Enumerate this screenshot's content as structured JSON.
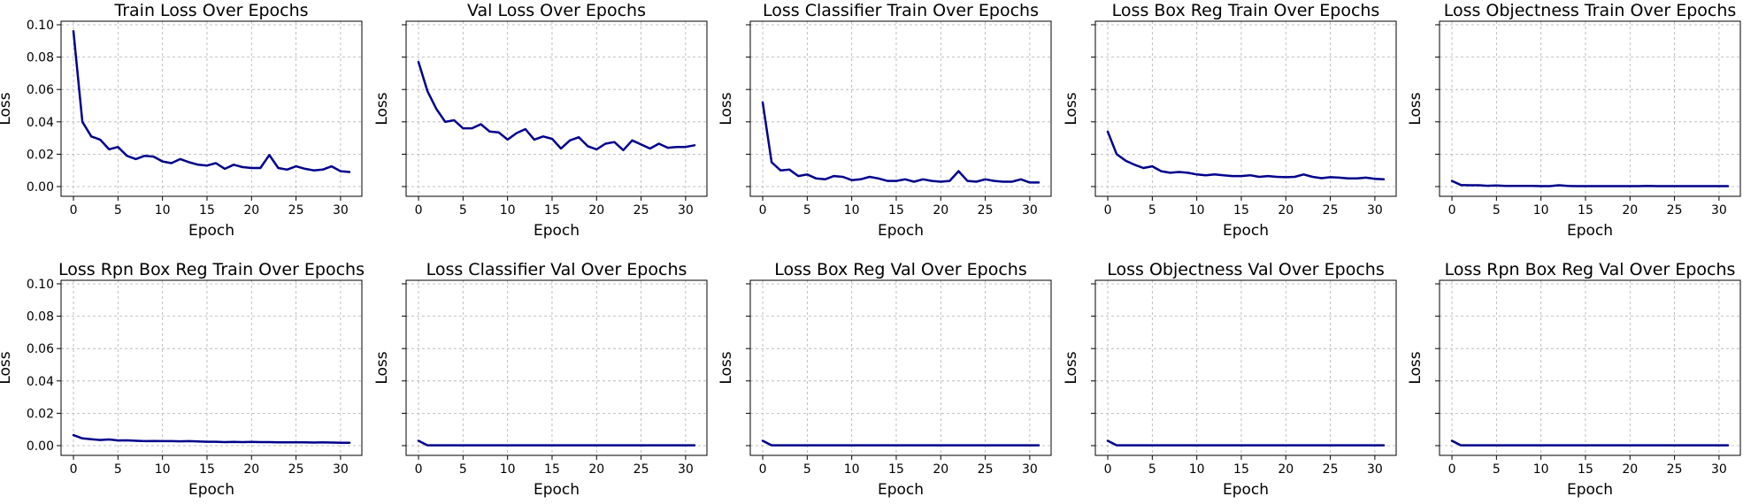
{
  "chart_data": [
    {
      "type": "line",
      "title": "Train Loss Over Epochs",
      "xlabel": "Epoch",
      "ylabel": "Loss",
      "ylim": [
        0,
        0.1
      ],
      "xlim": [
        0,
        31
      ],
      "xticks": [
        "0",
        "5",
        "10",
        "15",
        "20",
        "25",
        "30"
      ],
      "yticks": [
        "0.00",
        "0.02",
        "0.04",
        "0.06",
        "0.08",
        "0.10"
      ],
      "grid": true,
      "color": "#00008b",
      "x": [
        0,
        1,
        2,
        3,
        4,
        5,
        6,
        7,
        8,
        9,
        10,
        11,
        12,
        13,
        14,
        15,
        16,
        17,
        18,
        19,
        20,
        21,
        22,
        23,
        24,
        25,
        26,
        27,
        28,
        29,
        30,
        31
      ],
      "values": [
        0.096,
        0.04,
        0.031,
        0.029,
        0.023,
        0.0245,
        0.019,
        0.017,
        0.019,
        0.0185,
        0.0155,
        0.0145,
        0.017,
        0.015,
        0.0135,
        0.013,
        0.0145,
        0.011,
        0.0135,
        0.012,
        0.0115,
        0.0115,
        0.0195,
        0.0115,
        0.0105,
        0.0125,
        0.011,
        0.01,
        0.0105,
        0.0125,
        0.0095,
        0.009
      ]
    },
    {
      "type": "line",
      "title": "Val Loss Over Epochs",
      "xlabel": "Epoch",
      "ylabel": "Loss",
      "ylim": [
        0,
        0.1
      ],
      "xlim": [
        0,
        31
      ],
      "xticks": [
        "0",
        "5",
        "10",
        "15",
        "20",
        "25",
        "30"
      ],
      "yticks": [
        "0.00",
        "0.02",
        "0.04",
        "0.06",
        "0.08",
        "0.10"
      ],
      "grid": true,
      "color": "#00008b",
      "x": [
        0,
        1,
        2,
        3,
        4,
        5,
        6,
        7,
        8,
        9,
        10,
        11,
        12,
        13,
        14,
        15,
        16,
        17,
        18,
        19,
        20,
        21,
        22,
        23,
        24,
        25,
        26,
        27,
        28,
        29,
        30,
        31
      ],
      "values": [
        0.077,
        0.059,
        0.048,
        0.04,
        0.041,
        0.036,
        0.036,
        0.0385,
        0.034,
        0.0335,
        0.029,
        0.033,
        0.0355,
        0.029,
        0.031,
        0.0295,
        0.0235,
        0.0285,
        0.0305,
        0.025,
        0.023,
        0.0265,
        0.0275,
        0.0225,
        0.0285,
        0.026,
        0.0235,
        0.0265,
        0.024,
        0.0245,
        0.0245,
        0.0255
      ]
    },
    {
      "type": "line",
      "title": "Loss Classifier Train Over Epochs",
      "xlabel": "Epoch",
      "ylabel": "Loss",
      "ylim": [
        0,
        0.1
      ],
      "xlim": [
        0,
        31
      ],
      "xticks": [
        "0",
        "5",
        "10",
        "15",
        "20",
        "25",
        "30"
      ],
      "yticks": [
        "0.00",
        "0.02",
        "0.04",
        "0.06",
        "0.08",
        "0.10"
      ],
      "grid": true,
      "color": "#00008b",
      "x": [
        0,
        1,
        2,
        3,
        4,
        5,
        6,
        7,
        8,
        9,
        10,
        11,
        12,
        13,
        14,
        15,
        16,
        17,
        18,
        19,
        20,
        21,
        22,
        23,
        24,
        25,
        26,
        27,
        28,
        29,
        30,
        31
      ],
      "values": [
        0.052,
        0.015,
        0.01,
        0.0105,
        0.0065,
        0.0075,
        0.005,
        0.0045,
        0.0065,
        0.006,
        0.004,
        0.0045,
        0.006,
        0.005,
        0.0035,
        0.0035,
        0.0045,
        0.003,
        0.0045,
        0.0035,
        0.003,
        0.0035,
        0.0095,
        0.0035,
        0.003,
        0.0045,
        0.0035,
        0.003,
        0.003,
        0.0045,
        0.0025,
        0.0025
      ]
    },
    {
      "type": "line",
      "title": "Loss Box Reg Train Over Epochs",
      "xlabel": "Epoch",
      "ylabel": "Loss",
      "ylim": [
        0,
        0.1
      ],
      "xlim": [
        0,
        31
      ],
      "xticks": [
        "0",
        "5",
        "10",
        "15",
        "20",
        "25",
        "30"
      ],
      "yticks": [
        "0.00",
        "0.02",
        "0.04",
        "0.06",
        "0.08",
        "0.10"
      ],
      "grid": true,
      "color": "#00008b",
      "x": [
        0,
        1,
        2,
        3,
        4,
        5,
        6,
        7,
        8,
        9,
        10,
        11,
        12,
        13,
        14,
        15,
        16,
        17,
        18,
        19,
        20,
        21,
        22,
        23,
        24,
        25,
        26,
        27,
        28,
        29,
        30,
        31
      ],
      "values": [
        0.034,
        0.02,
        0.016,
        0.0135,
        0.0115,
        0.0125,
        0.0095,
        0.0085,
        0.009,
        0.0085,
        0.0075,
        0.007,
        0.0075,
        0.007,
        0.0065,
        0.0065,
        0.007,
        0.006,
        0.0065,
        0.006,
        0.0058,
        0.006,
        0.0075,
        0.006,
        0.0052,
        0.0058,
        0.0055,
        0.005,
        0.005,
        0.0055,
        0.0048,
        0.0045
      ]
    },
    {
      "type": "line",
      "title": "Loss Objectness Train Over Epochs",
      "xlabel": "Epoch",
      "ylabel": "Loss",
      "ylim": [
        0,
        0.1
      ],
      "xlim": [
        0,
        31
      ],
      "xticks": [
        "0",
        "5",
        "10",
        "15",
        "20",
        "25",
        "30"
      ],
      "yticks": [
        "0.00",
        "0.02",
        "0.04",
        "0.06",
        "0.08",
        "0.10"
      ],
      "grid": true,
      "color": "#00008b",
      "x": [
        0,
        1,
        2,
        3,
        4,
        5,
        6,
        7,
        8,
        9,
        10,
        11,
        12,
        13,
        14,
        15,
        16,
        17,
        18,
        19,
        20,
        21,
        22,
        23,
        24,
        25,
        26,
        27,
        28,
        29,
        30,
        31
      ],
      "values": [
        0.0035,
        0.001,
        0.0008,
        0.0008,
        0.0005,
        0.0007,
        0.0004,
        0.0004,
        0.0004,
        0.0004,
        0.0003,
        0.0003,
        0.0008,
        0.0004,
        0.0003,
        0.0003,
        0.0003,
        0.0003,
        0.0003,
        0.0003,
        0.0003,
        0.0003,
        0.0004,
        0.0003,
        0.0003,
        0.0003,
        0.0003,
        0.0003,
        0.0003,
        0.0003,
        0.0003,
        0.0003
      ]
    },
    {
      "type": "line",
      "title": "Loss Rpn Box Reg Train Over Epochs",
      "xlabel": "Epoch",
      "ylabel": "Loss",
      "ylim": [
        0,
        0.1
      ],
      "xlim": [
        0,
        31
      ],
      "xticks": [
        "0",
        "5",
        "10",
        "15",
        "20",
        "25",
        "30"
      ],
      "yticks": [
        "0.00",
        "0.02",
        "0.04",
        "0.06",
        "0.08",
        "0.10"
      ],
      "grid": true,
      "color": "#00008b",
      "x": [
        0,
        1,
        2,
        3,
        4,
        5,
        6,
        7,
        8,
        9,
        10,
        11,
        12,
        13,
        14,
        15,
        16,
        17,
        18,
        19,
        20,
        21,
        22,
        23,
        24,
        25,
        26,
        27,
        28,
        29,
        30,
        31
      ],
      "values": [
        0.0065,
        0.0045,
        0.004,
        0.0035,
        0.0038,
        0.0032,
        0.0033,
        0.003,
        0.0028,
        0.0029,
        0.0028,
        0.0028,
        0.0027,
        0.0028,
        0.0026,
        0.0024,
        0.0024,
        0.0022,
        0.0023,
        0.0022,
        0.0023,
        0.0022,
        0.0022,
        0.0021,
        0.002,
        0.0021,
        0.002,
        0.0019,
        0.002,
        0.0019,
        0.0018,
        0.0018
      ]
    },
    {
      "type": "line",
      "title": "Loss Classifier Val Over Epochs",
      "xlabel": "Epoch",
      "ylabel": "Loss",
      "ylim": [
        0,
        0.1
      ],
      "xlim": [
        0,
        31
      ],
      "xticks": [
        "0",
        "5",
        "10",
        "15",
        "20",
        "25",
        "30"
      ],
      "yticks": [
        "0.00",
        "0.02",
        "0.04",
        "0.06",
        "0.08",
        "0.10"
      ],
      "grid": true,
      "color": "#00008b",
      "x": [
        0,
        1,
        2,
        3,
        4,
        5,
        6,
        7,
        8,
        9,
        10,
        11,
        12,
        13,
        14,
        15,
        16,
        17,
        18,
        19,
        20,
        21,
        22,
        23,
        24,
        25,
        26,
        27,
        28,
        29,
        30,
        31
      ],
      "values": [
        0.003,
        0.0002,
        0.0002,
        0.0002,
        0.0002,
        0.0002,
        0.0002,
        0.0002,
        0.0002,
        0.0002,
        0.0002,
        0.0002,
        0.0002,
        0.0002,
        0.0002,
        0.0002,
        0.0002,
        0.0002,
        0.0002,
        0.0002,
        0.0002,
        0.0002,
        0.0002,
        0.0002,
        0.0002,
        0.0002,
        0.0002,
        0.0002,
        0.0002,
        0.0002,
        0.0002,
        0.0002
      ]
    },
    {
      "type": "line",
      "title": "Loss Box Reg Val Over Epochs",
      "xlabel": "Epoch",
      "ylabel": "Loss",
      "ylim": [
        0,
        0.1
      ],
      "xlim": [
        0,
        31
      ],
      "xticks": [
        "0",
        "5",
        "10",
        "15",
        "20",
        "25",
        "30"
      ],
      "yticks": [
        "0.00",
        "0.02",
        "0.04",
        "0.06",
        "0.08",
        "0.10"
      ],
      "grid": true,
      "color": "#00008b",
      "x": [
        0,
        1,
        2,
        3,
        4,
        5,
        6,
        7,
        8,
        9,
        10,
        11,
        12,
        13,
        14,
        15,
        16,
        17,
        18,
        19,
        20,
        21,
        22,
        23,
        24,
        25,
        26,
        27,
        28,
        29,
        30,
        31
      ],
      "values": [
        0.003,
        0.0002,
        0.0002,
        0.0002,
        0.0002,
        0.0002,
        0.0002,
        0.0002,
        0.0002,
        0.0002,
        0.0002,
        0.0002,
        0.0002,
        0.0002,
        0.0002,
        0.0002,
        0.0002,
        0.0002,
        0.0002,
        0.0002,
        0.0002,
        0.0002,
        0.0002,
        0.0002,
        0.0002,
        0.0002,
        0.0002,
        0.0002,
        0.0002,
        0.0002,
        0.0002,
        0.0002
      ]
    },
    {
      "type": "line",
      "title": "Loss Objectness Val Over Epochs",
      "xlabel": "Epoch",
      "ylabel": "Loss",
      "ylim": [
        0,
        0.1
      ],
      "xlim": [
        0,
        31
      ],
      "xticks": [
        "0",
        "5",
        "10",
        "15",
        "20",
        "25",
        "30"
      ],
      "yticks": [
        "0.00",
        "0.02",
        "0.04",
        "0.06",
        "0.08",
        "0.10"
      ],
      "grid": true,
      "color": "#00008b",
      "x": [
        0,
        1,
        2,
        3,
        4,
        5,
        6,
        7,
        8,
        9,
        10,
        11,
        12,
        13,
        14,
        15,
        16,
        17,
        18,
        19,
        20,
        21,
        22,
        23,
        24,
        25,
        26,
        27,
        28,
        29,
        30,
        31
      ],
      "values": [
        0.003,
        0.0002,
        0.0002,
        0.0002,
        0.0002,
        0.0002,
        0.0002,
        0.0002,
        0.0002,
        0.0002,
        0.0002,
        0.0002,
        0.0002,
        0.0002,
        0.0002,
        0.0002,
        0.0002,
        0.0002,
        0.0002,
        0.0002,
        0.0002,
        0.0002,
        0.0002,
        0.0002,
        0.0002,
        0.0002,
        0.0002,
        0.0002,
        0.0002,
        0.0002,
        0.0002,
        0.0002
      ]
    },
    {
      "type": "line",
      "title": "Loss Rpn Box Reg Val Over Epochs",
      "xlabel": "Epoch",
      "ylabel": "Loss",
      "ylim": [
        0,
        0.1
      ],
      "xlim": [
        0,
        31
      ],
      "xticks": [
        "0",
        "5",
        "10",
        "15",
        "20",
        "25",
        "30"
      ],
      "yticks": [
        "0.00",
        "0.02",
        "0.04",
        "0.06",
        "0.08",
        "0.10"
      ],
      "grid": true,
      "color": "#00008b",
      "x": [
        0,
        1,
        2,
        3,
        4,
        5,
        6,
        7,
        8,
        9,
        10,
        11,
        12,
        13,
        14,
        15,
        16,
        17,
        18,
        19,
        20,
        21,
        22,
        23,
        24,
        25,
        26,
        27,
        28,
        29,
        30,
        31
      ],
      "values": [
        0.003,
        0.0002,
        0.0002,
        0.0002,
        0.0002,
        0.0002,
        0.0002,
        0.0002,
        0.0002,
        0.0002,
        0.0002,
        0.0002,
        0.0002,
        0.0002,
        0.0002,
        0.0002,
        0.0002,
        0.0002,
        0.0002,
        0.0002,
        0.0002,
        0.0002,
        0.0002,
        0.0002,
        0.0002,
        0.0002,
        0.0002,
        0.0002,
        0.0002,
        0.0002,
        0.0002,
        0.0002
      ]
    }
  ]
}
